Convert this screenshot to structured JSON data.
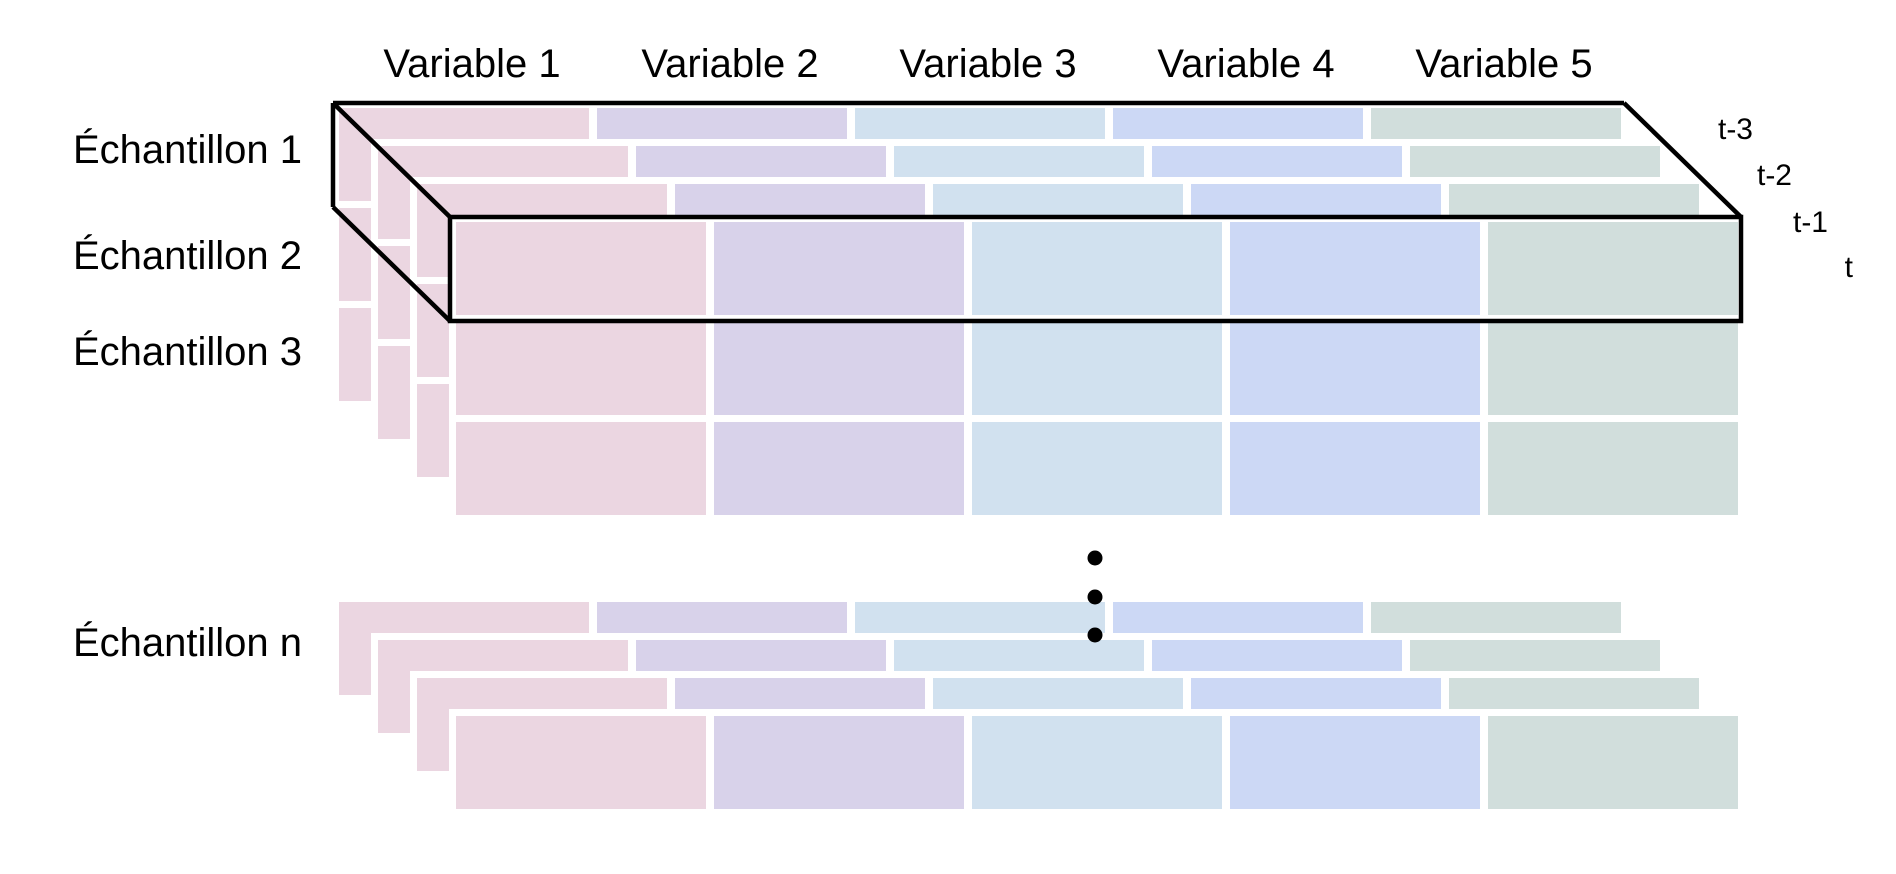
{
  "diagram": {
    "description": "Tenseur 3D de séries temporelles : échantillons × variables × pas de temps",
    "variables": [
      {
        "label": "Variable 1",
        "color": "#ebd6e1"
      },
      {
        "label": "Variable 2",
        "color": "#d8d2ea"
      },
      {
        "label": "Variable 3",
        "color": "#d1e1ef"
      },
      {
        "label": "Variable 4",
        "color": "#ccd8f5"
      },
      {
        "label": "Variable 5",
        "color": "#d1dedc"
      }
    ],
    "top_group": {
      "row_labels": [
        "Échantillon 1",
        "Échantillon 2",
        "Échantillon 3"
      ]
    },
    "bottom_group": {
      "row_label": "Échantillon n"
    },
    "time_labels": [
      "t-3",
      "t-2",
      "t-1",
      "t"
    ],
    "outlined_sample": "Échantillon 1",
    "outline_color": "#000000",
    "text_color": "#000000",
    "background_color": "#ffffff",
    "ellipsis": {
      "dot_count": 3,
      "color": "#000000"
    }
  }
}
